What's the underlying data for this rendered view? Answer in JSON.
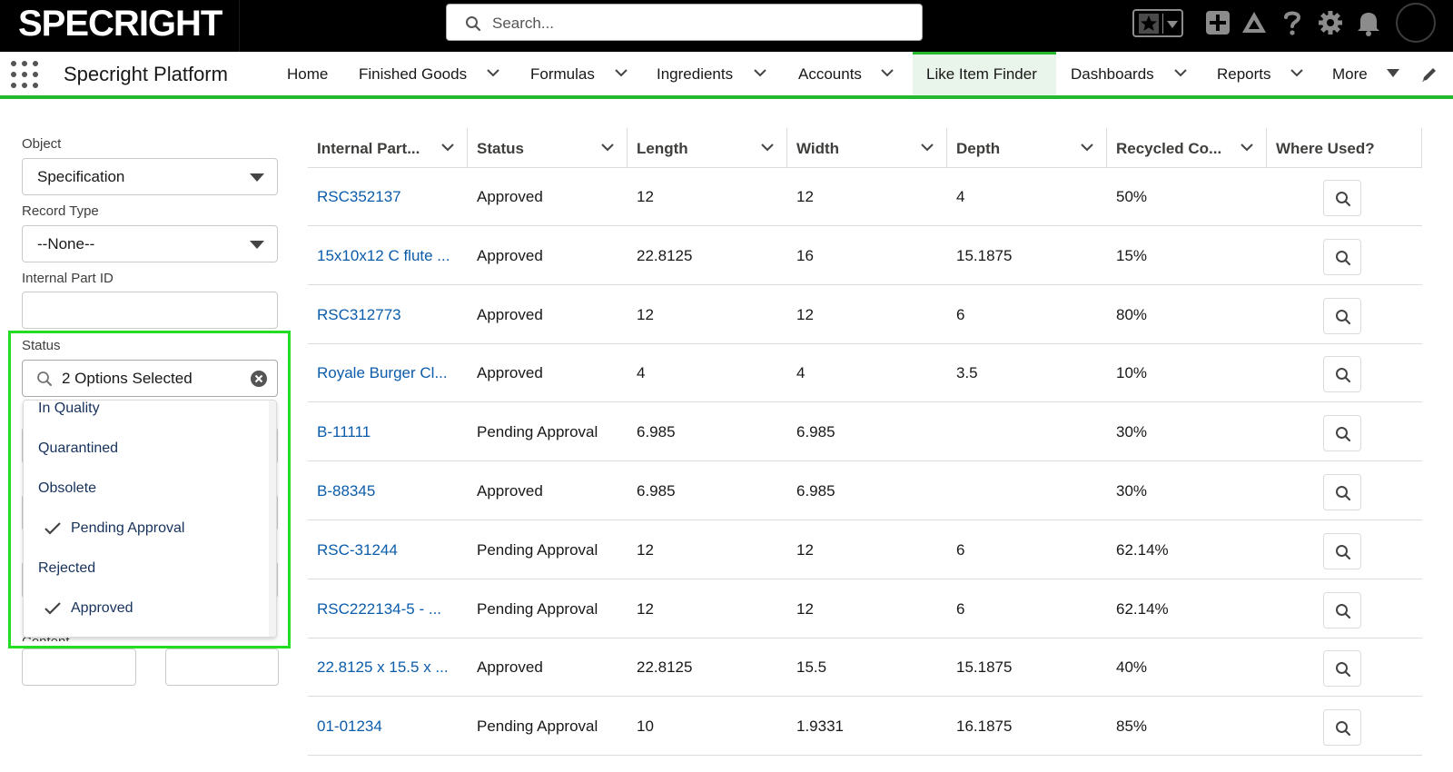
{
  "brand": {
    "logo_text": "SPECRIGHT",
    "accent": "#23b82e",
    "highlight": "#22dd22",
    "link_color": "#0b5cab"
  },
  "search": {
    "placeholder": "Search..."
  },
  "top_icons": [
    "favorites-star-icon",
    "add-icon",
    "trailhead-icon",
    "help-icon",
    "setup-gear-icon",
    "notification-bell-icon",
    "user-avatar"
  ],
  "nav": {
    "app_name": "Specright Platform",
    "items": [
      {
        "label": "Home",
        "has_menu": false
      },
      {
        "label": "Finished Goods",
        "has_menu": true
      },
      {
        "label": "Formulas",
        "has_menu": true
      },
      {
        "label": "Ingredients",
        "has_menu": true
      },
      {
        "label": "Accounts",
        "has_menu": true
      },
      {
        "label": "Like Item Finder",
        "has_menu": false,
        "active": true
      },
      {
        "label": "Dashboards",
        "has_menu": true
      },
      {
        "label": "Reports",
        "has_menu": true
      },
      {
        "label": "More",
        "has_menu": true
      }
    ]
  },
  "filters": {
    "object_label": "Object",
    "object_value": "Specification",
    "record_type_label": "Record Type",
    "record_type_value": "--None--",
    "internal_part_id_label": "Internal Part ID",
    "internal_part_id_value": "",
    "status_label": "Status",
    "status_value": "2 Options Selected",
    "peek_label": "Content",
    "status_options": [
      {
        "label": "In Quality",
        "selected": false
      },
      {
        "label": "Quarantined",
        "selected": false
      },
      {
        "label": "Obsolete",
        "selected": false
      },
      {
        "label": "Pending Approval",
        "selected": true
      },
      {
        "label": "Rejected",
        "selected": false
      },
      {
        "label": "Approved",
        "selected": true
      }
    ]
  },
  "table": {
    "columns": [
      "Internal Part...",
      "Status",
      "Length",
      "Width",
      "Depth",
      "Recycled Co...",
      "Where Used?"
    ],
    "rows": [
      {
        "part": "RSC352137",
        "status": "Approved",
        "length": "12",
        "width": "12",
        "depth": "4",
        "recycled": "50%"
      },
      {
        "part": "15x10x12 C flute ...",
        "status": "Approved",
        "length": "22.8125",
        "width": "16",
        "depth": "15.1875",
        "recycled": "15%"
      },
      {
        "part": "RSC312773",
        "status": "Approved",
        "length": "12",
        "width": "12",
        "depth": "6",
        "recycled": "80%"
      },
      {
        "part": "Royale Burger Cl...",
        "status": "Approved",
        "length": "4",
        "width": "4",
        "depth": "3.5",
        "recycled": "10%"
      },
      {
        "part": "B-11111",
        "status": "Pending Approval",
        "length": "6.985",
        "width": "6.985",
        "depth": "",
        "recycled": "30%"
      },
      {
        "part": "B-88345",
        "status": "Approved",
        "length": "6.985",
        "width": "6.985",
        "depth": "",
        "recycled": "30%"
      },
      {
        "part": "RSC-31244",
        "status": "Pending Approval",
        "length": "12",
        "width": "12",
        "depth": "6",
        "recycled": "62.14%"
      },
      {
        "part": "RSC222134-5 - ...",
        "status": "Pending Approval",
        "length": "12",
        "width": "12",
        "depth": "6",
        "recycled": "62.14%"
      },
      {
        "part": "22.8125 x 15.5 x ...",
        "status": "Approved",
        "length": "22.8125",
        "width": "15.5",
        "depth": "15.1875",
        "recycled": "40%"
      },
      {
        "part": "01-01234",
        "status": "Pending Approval",
        "length": "10",
        "width": "1.9331",
        "depth": "16.1875",
        "recycled": "85%"
      }
    ]
  }
}
